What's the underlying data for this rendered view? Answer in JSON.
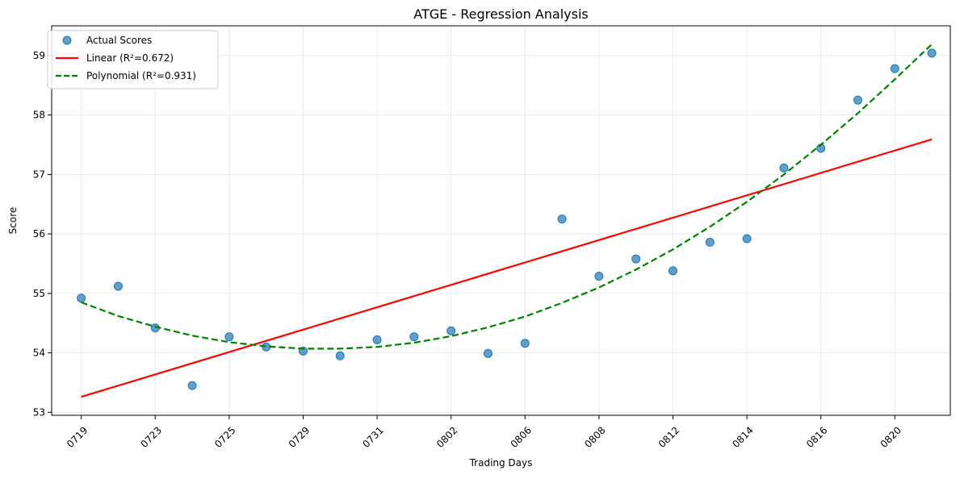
{
  "chart_data": {
    "type": "scatter",
    "title": "ATGE - Regression Analysis",
    "xlabel": "Trading Days",
    "ylabel": "Score",
    "x_tick_labels": [
      "0719",
      "0723",
      "0725",
      "0729",
      "0731",
      "0802",
      "0806",
      "0808",
      "0812",
      "0814",
      "0816",
      "0820"
    ],
    "y_ticks": [
      53,
      54,
      55,
      56,
      57,
      58,
      59
    ],
    "ylim": [
      52.95,
      59.5
    ],
    "xlim": [
      -0.8,
      23.5
    ],
    "grid": true,
    "legend_position": "top-left",
    "legend": [
      {
        "label": "Actual Scores",
        "kind": "marker",
        "color": "#1f77b4"
      },
      {
        "label": "Linear (R²=0.672)",
        "kind": "line",
        "color": "#ff0000"
      },
      {
        "label": "Polynomial (R²=0.931)",
        "kind": "dashed-line",
        "color": "#008000"
      }
    ],
    "series": [
      {
        "name": "Actual Scores",
        "type": "scatter",
        "color": "#1f77b4",
        "x": [
          0,
          1,
          2,
          3,
          4,
          5,
          6,
          7,
          8,
          9,
          10,
          11,
          12,
          13,
          14,
          15,
          16,
          17,
          18,
          19,
          20,
          21,
          22,
          23
        ],
        "values": [
          54.92,
          55.12,
          54.42,
          53.45,
          54.27,
          54.1,
          54.03,
          53.95,
          54.22,
          54.27,
          54.37,
          53.99,
          54.16,
          56.25,
          55.29,
          55.58,
          55.38,
          55.86,
          55.92,
          57.11,
          57.44,
          58.25,
          58.78,
          59.04
        ]
      },
      {
        "name": "Linear (R²=0.672)",
        "type": "line",
        "color": "#ff0000",
        "x": [
          0,
          23
        ],
        "values": [
          53.26,
          57.59
        ]
      },
      {
        "name": "Polynomial (R²=0.931)",
        "type": "dashed-line",
        "color": "#008000",
        "x": [
          0,
          1,
          2,
          3,
          4,
          5,
          6,
          7,
          8,
          9,
          10,
          11,
          12,
          13,
          14,
          15,
          16,
          17,
          18,
          19,
          20,
          21,
          22,
          23
        ],
        "values": [
          54.85,
          54.62,
          54.44,
          54.29,
          54.18,
          54.11,
          54.07,
          54.07,
          54.1,
          54.17,
          54.28,
          54.43,
          54.61,
          54.84,
          55.1,
          55.4,
          55.74,
          56.12,
          56.54,
          57.0,
          57.5,
          58.03,
          58.6,
          59.19
        ]
      }
    ]
  }
}
